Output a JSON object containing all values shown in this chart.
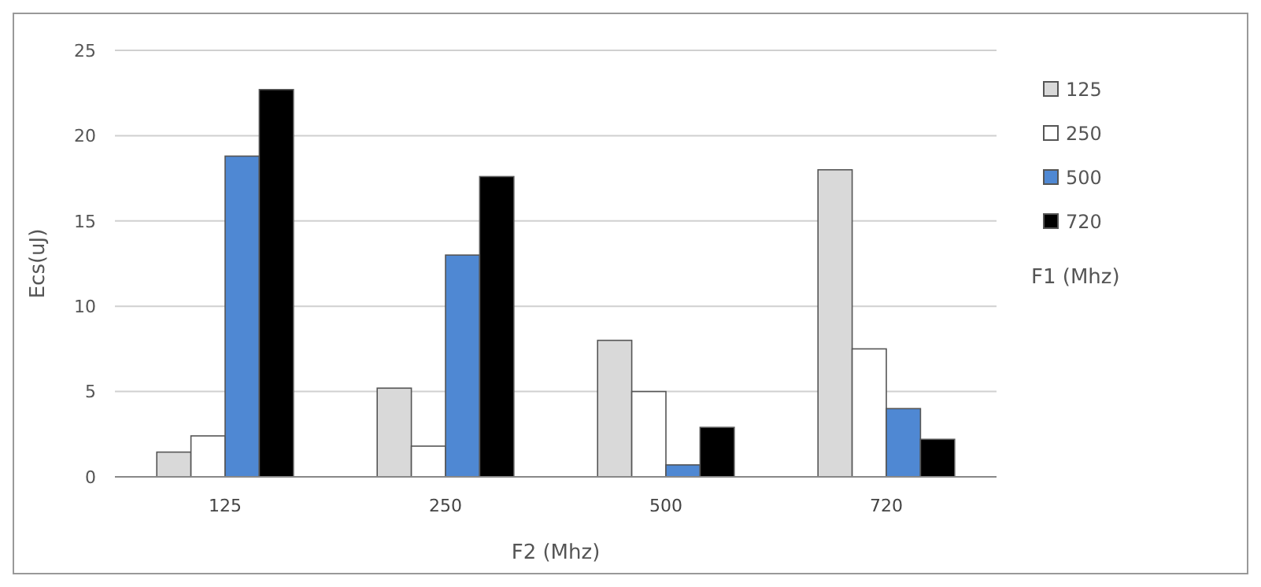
{
  "chart_data": {
    "type": "bar",
    "xlabel": "F2 (Mhz)",
    "ylabel": "Ecs(uJ)",
    "legend_title": "F1 (Mhz)",
    "categories": [
      "125",
      "250",
      "500",
      "720"
    ],
    "series": [
      {
        "name": "125",
        "color": "#d9d9d9",
        "values": [
          1.45,
          5.2,
          8.0,
          18.0
        ]
      },
      {
        "name": "250",
        "color": "#ffffff",
        "values": [
          2.4,
          1.8,
          5.0,
          7.5
        ]
      },
      {
        "name": "500",
        "color": "#4f88d3",
        "values": [
          18.8,
          13.0,
          0.7,
          4.0
        ]
      },
      {
        "name": "720",
        "color": "#000000",
        "values": [
          22.7,
          17.6,
          2.9,
          2.2
        ]
      }
    ],
    "ylim": [
      0,
      25
    ],
    "yticks": [
      0,
      5,
      10,
      15,
      20,
      25
    ],
    "grid": "y",
    "legend": "right"
  }
}
